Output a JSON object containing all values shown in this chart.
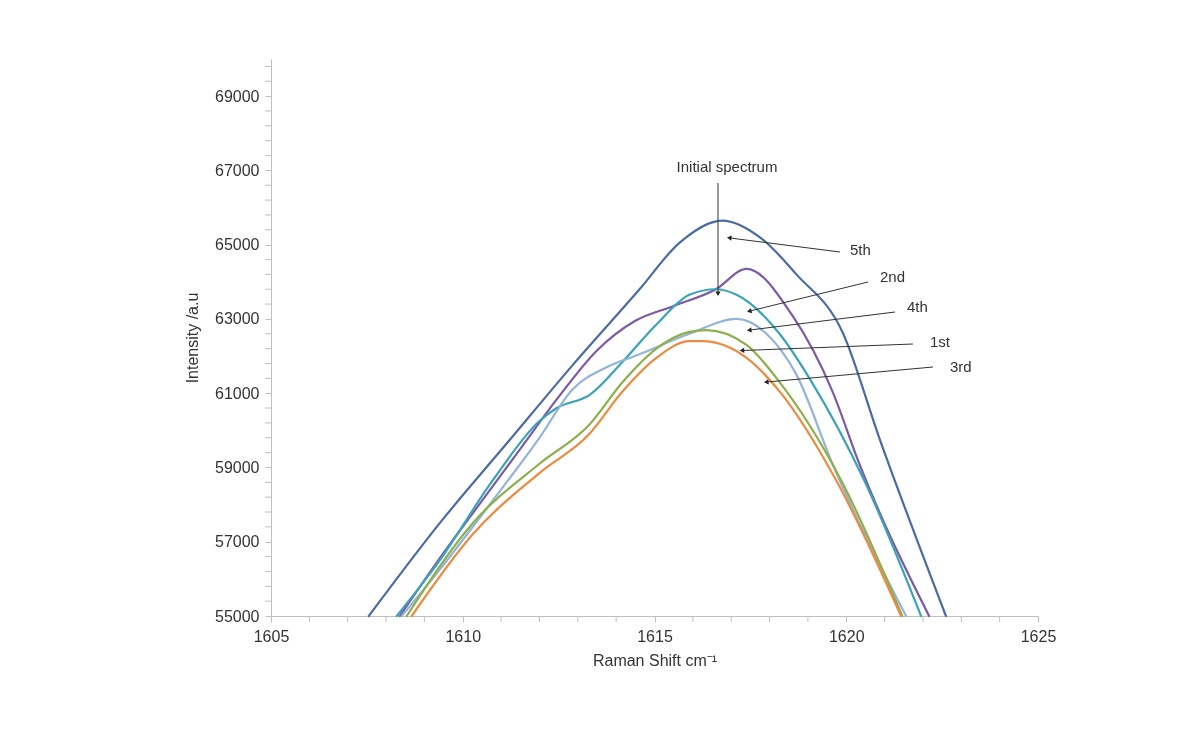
{
  "chart_data": {
    "type": "line",
    "xlabel": "Raman Shift cm⁻¹",
    "ylabel": "Intensity /a.u",
    "xlim": [
      1605,
      1625
    ],
    "xticks": [
      1605,
      {
        "value": 1606,
        "label": null
      },
      {
        "value": 1607,
        "label": null
      },
      {
        "value": 1608,
        "label": null
      },
      {
        "value": 1609,
        "label": null
      },
      1610,
      {
        "value": 1611,
        "label": null
      },
      {
        "value": 1612,
        "label": null
      },
      {
        "value": 1613,
        "label": null
      },
      {
        "value": 1614,
        "label": null
      },
      1615,
      {
        "value": 1616,
        "label": null
      },
      {
        "value": 1617,
        "label": null
      },
      {
        "value": 1618,
        "label": null
      },
      {
        "value": 1619,
        "label": null
      },
      1620,
      {
        "value": 1621,
        "label": null
      },
      {
        "value": 1622,
        "label": null
      },
      {
        "value": 1623,
        "label": null
      },
      {
        "value": 1624,
        "label": null
      },
      1625
    ],
    "ylim": [
      55000,
      70000
    ],
    "yticks": [
      55000,
      {
        "value": 55400,
        "label": null
      },
      {
        "value": 55800,
        "label": null
      },
      {
        "value": 56200,
        "label": null
      },
      {
        "value": 56600,
        "label": null
      },
      57000,
      {
        "value": 57400,
        "label": null
      },
      {
        "value": 57800,
        "label": null
      },
      {
        "value": 58200,
        "label": null
      },
      {
        "value": 58600,
        "label": null
      },
      59000,
      {
        "value": 59400,
        "label": null
      },
      {
        "value": 59800,
        "label": null
      },
      {
        "value": 60200,
        "label": null
      },
      {
        "value": 60600,
        "label": null
      },
      61000,
      {
        "value": 61400,
        "label": null
      },
      {
        "value": 61800,
        "label": null
      },
      {
        "value": 62200,
        "label": null
      },
      {
        "value": 62600,
        "label": null
      },
      63000,
      {
        "value": 63400,
        "label": null
      },
      {
        "value": 63800,
        "label": null
      },
      {
        "value": 64200,
        "label": null
      },
      {
        "value": 64600,
        "label": null
      },
      65000,
      {
        "value": 65400,
        "label": null
      },
      {
        "value": 65800,
        "label": null
      },
      {
        "value": 66200,
        "label": null
      },
      {
        "value": 66600,
        "label": null
      },
      67000,
      {
        "value": 67400,
        "label": null
      },
      {
        "value": 67800,
        "label": null
      },
      {
        "value": 68200,
        "label": null
      },
      {
        "value": 68600,
        "label": null
      },
      69000,
      {
        "value": 69400,
        "label": null
      },
      {
        "value": 69800,
        "label": null
      }
    ],
    "series": [
      {
        "color": "#4a6ba5",
        "x": [
          1607.55,
          1609.4,
          1611.15,
          1612.86,
          1614.61,
          1615.65,
          1616.77,
          1617.81,
          1618.7,
          1619.9,
          1620.86,
          1622.6
        ],
        "values": [
          55000,
          57500,
          59650,
          61750,
          63800,
          65050,
          65650,
          65150,
          64200,
          62650,
          59800,
          55000
        ]
      },
      {
        "color": "#7b5aa6",
        "x": [
          1608.36,
          1609.5,
          1610.5,
          1611.5,
          1612.5,
          1613.5,
          1614.5,
          1615.5,
          1616.6,
          1617.4,
          1618.59,
          1619.64,
          1620.34,
          1622.16
        ],
        "values": [
          55000,
          56700,
          58100,
          59500,
          60900,
          62150,
          62950,
          63350,
          63800,
          64350,
          63100,
          61050,
          59100,
          55000
        ]
      },
      {
        "color": "#3ba3b8",
        "x": [
          1608.28,
          1609.4,
          1610.78,
          1612.0,
          1612.45,
          1613.3,
          1614.17,
          1615.05,
          1615.91,
          1616.6,
          1617.14,
          1618.26,
          1619.1,
          1620.47,
          1621.95
        ],
        "values": [
          55000,
          56500,
          58650,
          60250,
          60600,
          60950,
          61850,
          62850,
          63650,
          63800,
          63650,
          62600,
          61300,
          58650,
          55000
        ]
      },
      {
        "color": "#93b3d7",
        "x": [
          1608.41,
          1609.4,
          1610.7,
          1612.0,
          1612.86,
          1613.75,
          1614.61,
          1615.91,
          1617.14,
          1617.92,
          1618.7,
          1619.64,
          1621.56
        ],
        "values": [
          55000,
          56250,
          58000,
          59800,
          61100,
          61700,
          62050,
          62600,
          63000,
          62600,
          61500,
          59100,
          55000
        ]
      },
      {
        "color": "#8db04d",
        "x": [
          1608.54,
          1610.26,
          1612.0,
          1613.3,
          1614.17,
          1615.05,
          1615.91,
          1616.35,
          1617.4,
          1618.26,
          1619.87,
          1621.46
        ],
        "values": [
          55000,
          57500,
          59100,
          60150,
          61300,
          62200,
          62650,
          62700,
          62300,
          61300,
          58650,
          55000
        ]
      },
      {
        "color": "#ec8a3f",
        "x": [
          1608.67,
          1610.26,
          1612.0,
          1613.3,
          1614.17,
          1615.05,
          1615.91,
          1616.25,
          1617.4,
          1618.26,
          1619.74,
          1621.43
        ],
        "values": [
          55000,
          57200,
          58850,
          59900,
          61050,
          61950,
          62400,
          62400,
          61950,
          61050,
          58650,
          55000
        ]
      }
    ],
    "annotations": [
      "Initial spectrum",
      "5th",
      "2nd",
      "4th",
      {
        "text": "1st",
        "x": 1617.3,
        "y": 62150
      },
      "3rd"
    ]
  }
}
